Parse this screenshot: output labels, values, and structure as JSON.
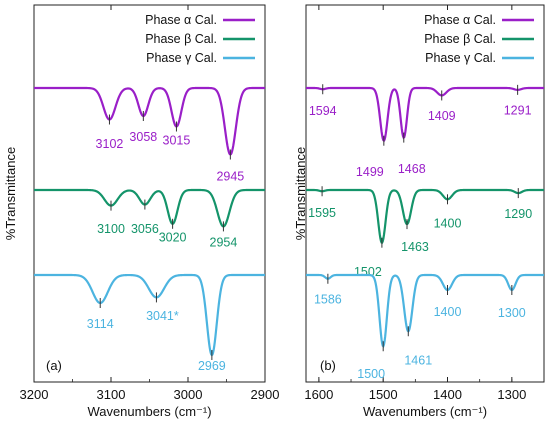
{
  "colors": {
    "alpha": "#9a1fc8",
    "beta": "#14946a",
    "gamma": "#4cb4e0"
  },
  "chart_data": [
    {
      "type": "line",
      "panel_label": "(a)",
      "xlabel": "Wavenumbers (cm⁻¹)",
      "ylabel": "%Transmittance",
      "xlim": [
        3200,
        2900
      ],
      "x_ticks": [
        "3200",
        "3100",
        "3000",
        "2900"
      ],
      "legend_position": "top-right",
      "series": [
        {
          "name": "Phase α Cal.",
          "color_key": "alpha",
          "peaks": [
            {
              "x": 3102,
              "label": "3102",
              "depth": 0.45,
              "width": 11
            },
            {
              "x": 3058,
              "label": "3058",
              "depth": 0.4,
              "width": 9
            },
            {
              "x": 3015,
              "label": "3015",
              "depth": 0.55,
              "width": 9
            },
            {
              "x": 2945,
              "label": "2945",
              "depth": 0.95,
              "width": 10
            }
          ]
        },
        {
          "name": "Phase β Cal.",
          "color_key": "beta",
          "peaks": [
            {
              "x": 3100,
              "label": "3100",
              "depth": 0.3,
              "width": 12
            },
            {
              "x": 3056,
              "label": "3056",
              "depth": 0.28,
              "width": 10
            },
            {
              "x": 3020,
              "label": "3020",
              "depth": 0.65,
              "width": 9
            },
            {
              "x": 2954,
              "label": "2954",
              "depth": 0.7,
              "width": 11
            }
          ]
        },
        {
          "name": "Phase γ Cal.",
          "color_key": "gamma",
          "peaks": [
            {
              "x": 3114,
              "label": "3114",
              "depth": 0.35,
              "width": 14
            },
            {
              "x": 3041,
              "label": "3041*",
              "depth": 0.28,
              "width": 14
            },
            {
              "x": 2969,
              "label": "2969",
              "depth": 1.0,
              "width": 9
            }
          ]
        }
      ]
    },
    {
      "type": "line",
      "panel_label": "(b)",
      "xlabel": "Wavenumbers (cm⁻¹)",
      "ylabel": "%Transmittance",
      "xlim": [
        1620,
        1250
      ],
      "x_ticks": [
        "1600",
        "1500",
        "1400",
        "1300"
      ],
      "legend_position": "top-right",
      "series": [
        {
          "name": "Phase α Cal.",
          "color_key": "alpha",
          "peaks": [
            {
              "x": 1594,
              "label": "1594",
              "depth": 0.02,
              "width": 6
            },
            {
              "x": 1499,
              "label": "1499",
              "depth": 0.85,
              "width": 8
            },
            {
              "x": 1468,
              "label": "1468",
              "depth": 0.8,
              "width": 7
            },
            {
              "x": 1409,
              "label": "1409",
              "depth": 0.12,
              "width": 10
            },
            {
              "x": 1291,
              "label": "1291",
              "depth": 0.03,
              "width": 8
            }
          ]
        },
        {
          "name": "Phase β Cal.",
          "color_key": "beta",
          "peaks": [
            {
              "x": 1595,
              "label": "1595",
              "depth": 0.02,
              "width": 6
            },
            {
              "x": 1502,
              "label": "1502",
              "depth": 0.85,
              "width": 8
            },
            {
              "x": 1463,
              "label": "1463",
              "depth": 0.55,
              "width": 9
            },
            {
              "x": 1400,
              "label": "1400",
              "depth": 0.15,
              "width": 10
            },
            {
              "x": 1290,
              "label": "1290",
              "depth": 0.05,
              "width": 8
            }
          ]
        },
        {
          "name": "Phase γ Cal.",
          "color_key": "gamma",
          "peaks": [
            {
              "x": 1586,
              "label": "1586",
              "depth": 0.05,
              "width": 6
            },
            {
              "x": 1500,
              "label": "1500",
              "depth": 0.95,
              "width": 8
            },
            {
              "x": 1461,
              "label": "1461",
              "depth": 0.75,
              "width": 9
            },
            {
              "x": 1400,
              "label": "1400",
              "depth": 0.2,
              "width": 10
            },
            {
              "x": 1300,
              "label": "1300",
              "depth": 0.2,
              "width": 8
            }
          ]
        }
      ]
    }
  ]
}
